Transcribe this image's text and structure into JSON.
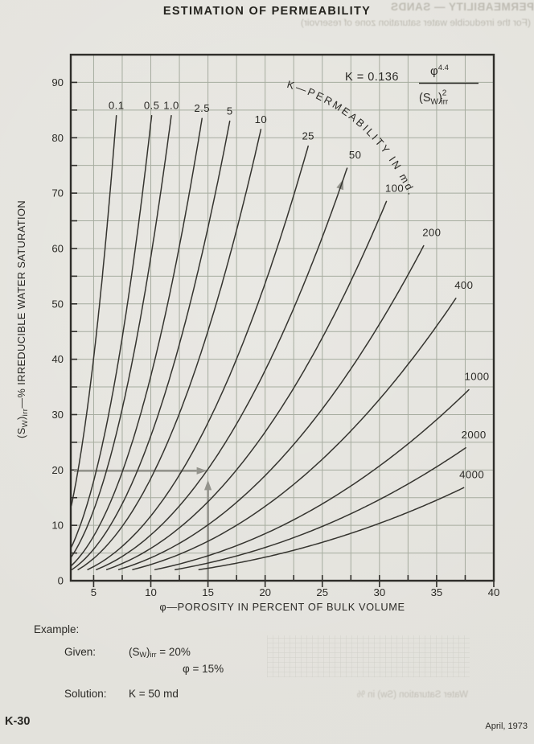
{
  "page": {
    "title": "ESTIMATION OF PERMEABILITY",
    "footer_left": "K-30",
    "footer_right": "April, 1973",
    "ghost_lines": [
      "PERMEABILITY — SANDS",
      "(For the irreducible water saturation zone of reservoir)",
      "Water Saturation (Sw) in %"
    ]
  },
  "example": {
    "heading": "Example:",
    "given_label": "Given:",
    "given_value_1": "(S_{W})_{irr} = 20%",
    "given_value_2": "φ = 15%",
    "solution_label": "Solution:",
    "solution_value": "K = 50 md"
  },
  "chart_data": {
    "type": "line",
    "title": "ESTIMATION OF PERMEABILITY",
    "xlabel": "φ—POROSITY IN PERCENT OF BULK VOLUME",
    "ylabel": "(S_{W})_{irr}—% IRREDUCIBLE WATER SATURATION",
    "xlim": [
      3,
      40
    ],
    "ylim": [
      0,
      95
    ],
    "x_ticks": [
      5,
      10,
      15,
      20,
      25,
      30,
      35,
      40
    ],
    "y_ticks": [
      0,
      10,
      20,
      30,
      40,
      50,
      60,
      70,
      80,
      90
    ],
    "x_minor_step": 2.5,
    "y_minor_step": 5,
    "grid": true,
    "legend_position": "none",
    "curve_family_label": "K—PERMEABILITY IN md.",
    "formula_parts": {
      "lhs": "K = 0.136",
      "numerator": "φ^{4.4}",
      "den_pre": "(S",
      "den_sub_1": "W",
      "den_close": ")",
      "den_sup": "2",
      "den_sub_2": "irr"
    },
    "relation": "Sw_irr(%) = sqrt(0.136 * phi^4.4 / K), phi in %, K in md",
    "formula_constants": {
      "coefficient": 0.136,
      "phi_exponent": 4.4,
      "sw_exponent": 2
    },
    "sw_bottom": 2,
    "series": [
      {
        "k": 0.1,
        "label": "0.1",
        "sw_top": 84
      },
      {
        "k": 0.5,
        "label": "0.5",
        "sw_top": 84
      },
      {
        "k": 1.0,
        "label": "1.0",
        "sw_top": 84
      },
      {
        "k": 2.5,
        "label": "2.5",
        "sw_top": 83.5
      },
      {
        "k": 5,
        "label": "5",
        "sw_top": 83
      },
      {
        "k": 10,
        "label": "10",
        "sw_top": 81.5
      },
      {
        "k": 25,
        "label": "25",
        "sw_top": 78.5
      },
      {
        "k": 50,
        "label": "50",
        "sw_top": 74.5
      },
      {
        "k": 100,
        "label": "100",
        "sw_top": 68.5
      },
      {
        "k": 200,
        "label": "200",
        "sw_top": 60.5
      },
      {
        "k": 400,
        "label": "400",
        "sw_top": 51
      },
      {
        "k": 1000,
        "label": "1000",
        "sw_top": 34.5
      },
      {
        "k": 2000,
        "label": "2000",
        "sw_top": 24
      },
      {
        "k": 4000,
        "label": "4000",
        "sw_top": 16.8
      }
    ],
    "example_point": {
      "phi": 15,
      "sw": 20,
      "k": 50
    },
    "colors": {
      "curve": "#35342f",
      "grid": "#a6ac9f",
      "frame": "#2f2e2a",
      "text": "#2b2a26",
      "arrow": "#94948d",
      "paper": "#e9e8e3"
    }
  }
}
